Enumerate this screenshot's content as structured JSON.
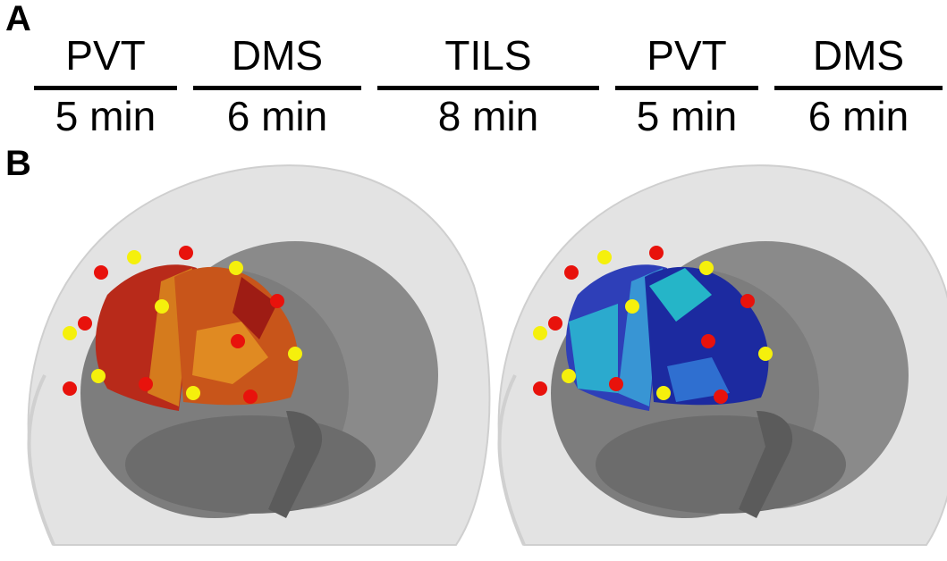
{
  "panels": {
    "a": {
      "label": "A",
      "segments": [
        {
          "task": "PVT",
          "duration": "5 min"
        },
        {
          "task": "DMS",
          "duration": "6 min"
        },
        {
          "task": "TILS",
          "duration": "8 min"
        },
        {
          "task": "PVT",
          "duration": "5 min"
        },
        {
          "task": "DMS",
          "duration": "6 min"
        }
      ]
    },
    "b": {
      "label": "B"
    }
  }
}
